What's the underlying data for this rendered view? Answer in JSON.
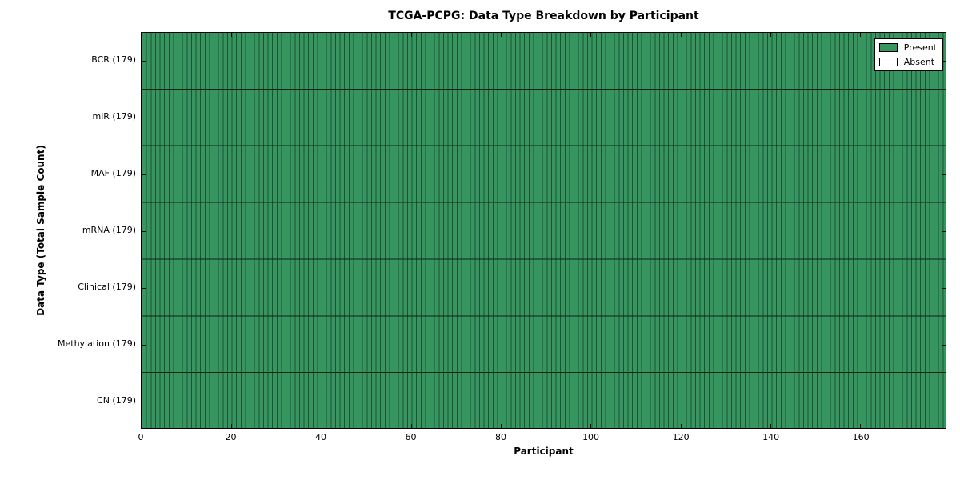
{
  "chart_data": {
    "type": "heatmap",
    "title": "TCGA-PCPG: Data Type Breakdown by Participant",
    "xlabel": "Participant",
    "ylabel": "Data Type (Total Sample Count)",
    "rows": [
      {
        "label": "BCR (179)",
        "data_type": "BCR",
        "total_samples": 179,
        "present_count": 179,
        "absent_count": 0
      },
      {
        "label": "miR (179)",
        "data_type": "miR",
        "total_samples": 179,
        "present_count": 179,
        "absent_count": 0
      },
      {
        "label": "MAF (179)",
        "data_type": "MAF",
        "total_samples": 179,
        "present_count": 179,
        "absent_count": 0
      },
      {
        "label": "mRNA (179)",
        "data_type": "mRNA",
        "total_samples": 179,
        "present_count": 179,
        "absent_count": 0
      },
      {
        "label": "Clinical (179)",
        "data_type": "Clinical",
        "total_samples": 179,
        "present_count": 179,
        "absent_count": 0
      },
      {
        "label": "Methylation (179)",
        "data_type": "Methylation",
        "total_samples": 179,
        "present_count": 179,
        "absent_count": 0
      },
      {
        "label": "CN (179)",
        "data_type": "CN",
        "total_samples": 179,
        "present_count": 179,
        "absent_count": 0
      }
    ],
    "n_participants": 179,
    "x_range": [
      0,
      179
    ],
    "x_ticks": [
      0,
      20,
      40,
      60,
      80,
      100,
      120,
      140,
      160
    ],
    "legend": [
      {
        "label": "Present",
        "color": "#379660"
      },
      {
        "label": "Absent",
        "color": "#ffffff"
      }
    ],
    "legend_position": "upper right",
    "colors": {
      "present_fill": "#379660",
      "cell_edge": "#1b5233",
      "row_separator": "#0e2318",
      "absent_fill": "#ffffff",
      "spine": "#000000"
    },
    "grid": false,
    "all_cells_present": true
  }
}
